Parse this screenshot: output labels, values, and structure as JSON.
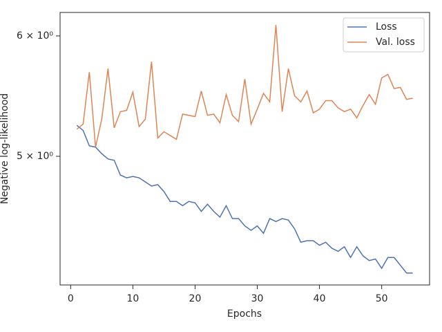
{
  "chart_data": {
    "type": "line",
    "xlabel": "Epochs",
    "ylabel": "Negative log-likelihood",
    "x": [
      1,
      2,
      3,
      4,
      5,
      6,
      7,
      8,
      9,
      10,
      11,
      12,
      13,
      14,
      15,
      16,
      17,
      18,
      19,
      20,
      21,
      22,
      23,
      24,
      25,
      26,
      27,
      28,
      29,
      30,
      31,
      32,
      33,
      34,
      35,
      36,
      37,
      38,
      39,
      40,
      41,
      42,
      43,
      44,
      45,
      46,
      47,
      48,
      49,
      50,
      51,
      52,
      53,
      54,
      55
    ],
    "series": [
      {
        "name": "Loss",
        "color": "#4c72b0",
        "values": [
          5.24,
          5.2,
          5.08,
          5.07,
          5.02,
          4.98,
          4.97,
          4.86,
          4.84,
          4.85,
          4.84,
          4.81,
          4.78,
          4.79,
          4.74,
          4.67,
          4.67,
          4.64,
          4.67,
          4.66,
          4.6,
          4.65,
          4.6,
          4.56,
          4.64,
          4.55,
          4.55,
          4.5,
          4.47,
          4.5,
          4.45,
          4.55,
          4.53,
          4.55,
          4.54,
          4.48,
          4.39,
          4.4,
          4.4,
          4.37,
          4.39,
          4.35,
          4.33,
          4.36,
          4.29,
          4.36,
          4.3,
          4.27,
          4.28,
          4.22,
          4.29,
          4.29,
          4.24,
          4.19,
          4.19
        ]
      },
      {
        "name": "Val. loss",
        "color": "#dd8452",
        "values": [
          5.21,
          5.25,
          5.68,
          5.07,
          5.29,
          5.71,
          5.22,
          5.35,
          5.36,
          5.51,
          5.23,
          5.29,
          5.77,
          5.14,
          5.19,
          5.16,
          5.13,
          5.33,
          5.32,
          5.31,
          5.52,
          5.32,
          5.33,
          5.26,
          5.49,
          5.32,
          5.27,
          5.62,
          5.25,
          5.37,
          5.5,
          5.43,
          6.1,
          5.35,
          5.71,
          5.48,
          5.43,
          5.52,
          5.34,
          5.37,
          5.44,
          5.44,
          5.38,
          5.35,
          5.37,
          5.3,
          5.4,
          5.49,
          5.41,
          5.63,
          5.66,
          5.54,
          5.55,
          5.45,
          5.46
        ]
      }
    ],
    "xlim": [
      -1.7,
      57.7
    ],
    "xticks": [
      0,
      10,
      20,
      30,
      40,
      50
    ],
    "ylim": [
      4.115,
      6.217
    ],
    "yscale": "log",
    "yticks": [
      {
        "value": 5,
        "label": "5 × 10⁰"
      },
      {
        "value": 6,
        "label": "6 × 10⁰"
      }
    ],
    "legend": "upper right",
    "grid": false
  }
}
